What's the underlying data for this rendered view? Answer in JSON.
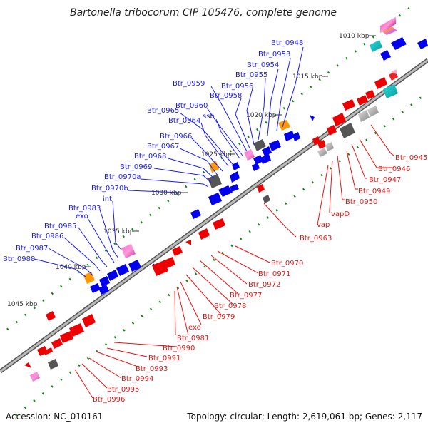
{
  "title": "Bartonella tribocorum CIP 105476, complete genome",
  "footer": {
    "accession": "Accession: NC_010161",
    "summary": "Topology: circular; Length: 2,619,061 bp; Genes: 2,117"
  },
  "scale_labels": [
    "1010 kbp",
    "1015 kbp",
    "1020 kbp",
    "1025 kbp",
    "1030 kbp",
    "1035 kbp",
    "1040 kbp",
    "1045 kbp"
  ],
  "upper_labels": [
    "Btr_0948",
    "Btr_0953",
    "Btr_0954",
    "Btr_0955",
    "Btr_0956",
    "Btr_0958",
    "Btr_0959",
    "Btr_0960",
    "ssb",
    "Btr_0965",
    "Btr_0964",
    "Btr_0966",
    "Btr_0967",
    "Btr_0968",
    "Btr_0969",
    "Btr_0970a",
    "Btr_0970b",
    "int",
    "Btr_0983",
    "exo",
    "Btr_0985",
    "Btr_0986",
    "Btr_0987",
    "Btr_0988"
  ],
  "lower_right_labels": [
    "Btr_0945",
    "Btr_0946",
    "Btr_0947",
    "Btr_0949",
    "Btr_0950",
    "vapD",
    "vap",
    "Btr_0963"
  ],
  "lower_labels": [
    "Btr_0970",
    "Btr_0971",
    "Btr_0972",
    "Btr_0977",
    "Btr_0978",
    "Btr_0979",
    "exo",
    "Btr_0981",
    "Btr_0990",
    "Btr_0991",
    "Btr_0993",
    "Btr_0994",
    "Btr_0995",
    "Btr_0996"
  ],
  "colors": {
    "forward": "#0000ee",
    "reverse": "#ee0000",
    "backbone": "#888888",
    "ticks": "#118811",
    "label_forward": "#1a1aff",
    "label_reverse": "#e01818"
  }
}
